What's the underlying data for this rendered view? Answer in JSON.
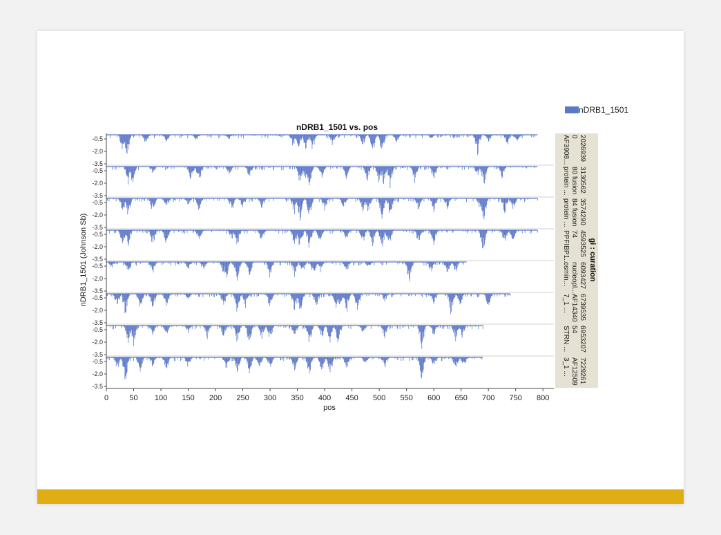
{
  "colors": {
    "bar": "#5b77c8",
    "footer": "#deae14",
    "side_panel": "#e5e2d3",
    "grid": "#d0d0d0"
  },
  "legend": {
    "label": "nDRB1_1501"
  },
  "side_panel": {
    "header": "gi : curation",
    "columns": [
      [
        "2026939",
        "0",
        "AF3908..."
      ],
      [
        "3130562",
        "80 fusion",
        "protein ..."
      ],
      [
        "3574290",
        "84 fusion",
        "protein ..."
      ],
      [
        "4593525",
        "74",
        "PPFIBP1..."
      ],
      [
        "6093427",
        "nucleopl...",
        "osmin..."
      ],
      [
        "6739535",
        "AF14340",
        "7_1 ..."
      ],
      [
        "6953207",
        "54",
        "STRN ..."
      ],
      [
        "7229261",
        "AF12509",
        "3_1 ..."
      ]
    ]
  },
  "chart_data": {
    "type": "bar",
    "title": "nDRB1_1501 vs. pos",
    "xlabel": "pos",
    "ylabel": "nDRB1_1501 (Johnson Sb)",
    "xlim": [
      0,
      820
    ],
    "x_ticks": [
      "0",
      "50",
      "100",
      "150",
      "200",
      "250",
      "300",
      "350",
      "400",
      "450",
      "500",
      "550",
      "600",
      "650",
      "700",
      "750",
      "800"
    ],
    "ylim": [
      -3.5,
      0
    ],
    "y_ticks": [
      "-0.5",
      "-2.0",
      "-3.5"
    ],
    "y_tick_values": [
      -0.5,
      -2.0,
      -3.5
    ],
    "series_name": "nDRB1_1501",
    "panels": [
      {
        "length": 790,
        "deep": [
          [
            30,
            -2.3
          ],
          [
            38,
            -3.1
          ],
          [
            72,
            -1.2
          ],
          [
            110,
            -1.0
          ],
          [
            165,
            -0.8
          ],
          [
            225,
            -0.6
          ],
          [
            342,
            -1.6
          ],
          [
            352,
            -2.1
          ],
          [
            365,
            -1.9
          ],
          [
            378,
            -2.2
          ],
          [
            415,
            -1.5
          ],
          [
            470,
            -1.4
          ],
          [
            488,
            -2.6
          ],
          [
            505,
            -2.2
          ],
          [
            532,
            -1.0
          ],
          [
            595,
            -0.5
          ],
          [
            680,
            -2.8
          ],
          [
            700,
            -1.0
          ],
          [
            735,
            -1.4
          ],
          [
            752,
            -1.2
          ]
        ]
      },
      {
        "length": 790,
        "deep": [
          [
            40,
            -2.3
          ],
          [
            48,
            -2.4
          ],
          [
            85,
            -0.9
          ],
          [
            155,
            -1.9
          ],
          [
            170,
            -2.0
          ],
          [
            225,
            -1.2
          ],
          [
            262,
            -1.4
          ],
          [
            355,
            -2.4
          ],
          [
            365,
            -1.8
          ],
          [
            372,
            -2.6
          ],
          [
            395,
            -1.4
          ],
          [
            440,
            -1.5
          ],
          [
            478,
            -2.0
          ],
          [
            500,
            -2.5
          ],
          [
            508,
            -2.4
          ],
          [
            520,
            -2.8
          ],
          [
            565,
            -2.0
          ],
          [
            600,
            -1.8
          ],
          [
            680,
            -1.2
          ],
          [
            692,
            -2.9
          ],
          [
            725,
            -1.5
          ]
        ]
      },
      {
        "length": 790,
        "deep": [
          [
            30,
            -2.0
          ],
          [
            40,
            -2.3
          ],
          [
            85,
            -1.8
          ],
          [
            110,
            -1.2
          ],
          [
            150,
            -0.9
          ],
          [
            170,
            -1.6
          ],
          [
            230,
            -1.6
          ],
          [
            250,
            -1.2
          ],
          [
            285,
            -1.3
          ],
          [
            345,
            -2.2
          ],
          [
            355,
            -2.8
          ],
          [
            372,
            -2.6
          ],
          [
            400,
            -1.5
          ],
          [
            435,
            -1.3
          ],
          [
            470,
            -1.7
          ],
          [
            480,
            -1.8
          ],
          [
            505,
            -2.5
          ],
          [
            520,
            -2.2
          ],
          [
            572,
            -1.6
          ],
          [
            600,
            -1.7
          ],
          [
            625,
            -1.3
          ],
          [
            685,
            -1.5
          ],
          [
            692,
            -3.1
          ],
          [
            730,
            -1.9
          ],
          [
            745,
            -1.6
          ]
        ]
      },
      {
        "length": 790,
        "deep": [
          [
            30,
            -2.0
          ],
          [
            40,
            -2.2
          ],
          [
            85,
            -2.1
          ],
          [
            110,
            -1.9
          ],
          [
            170,
            -1.4
          ],
          [
            230,
            -1.3
          ],
          [
            240,
            -2.1
          ],
          [
            285,
            -1.6
          ],
          [
            345,
            -2.3
          ],
          [
            355,
            -2.6
          ],
          [
            372,
            -2.5
          ],
          [
            392,
            -1.8
          ],
          [
            440,
            -1.3
          ],
          [
            470,
            -1.8
          ],
          [
            488,
            -2.0
          ],
          [
            505,
            -2.6
          ],
          [
            518,
            -2.2
          ],
          [
            572,
            -1.6
          ],
          [
            600,
            -1.8
          ],
          [
            690,
            -2.9
          ],
          [
            730,
            -1.8
          ],
          [
            745,
            -1.5
          ]
        ]
      },
      {
        "length": 660,
        "deep": [
          [
            10,
            -0.8
          ],
          [
            40,
            -1.5
          ],
          [
            85,
            -1.6
          ],
          [
            150,
            -1.0
          ],
          [
            178,
            -1.2
          ],
          [
            215,
            -1.6
          ],
          [
            220,
            -2.2
          ],
          [
            240,
            -2.6
          ],
          [
            262,
            -2.0
          ],
          [
            300,
            -2.2
          ],
          [
            345,
            -1.8
          ],
          [
            360,
            -1.6
          ],
          [
            380,
            -2.1
          ],
          [
            392,
            -1.3
          ],
          [
            440,
            -1.5
          ],
          [
            480,
            -0.8
          ],
          [
            555,
            -3.1
          ],
          [
            595,
            -1.4
          ],
          [
            625,
            -1.8
          ],
          [
            640,
            -1.4
          ]
        ]
      },
      {
        "length": 740,
        "deep": [
          [
            20,
            -1.8
          ],
          [
            35,
            -3.0
          ],
          [
            62,
            -1.9
          ],
          [
            85,
            -2.0
          ],
          [
            110,
            -1.6
          ],
          [
            150,
            -0.8
          ],
          [
            215,
            -1.7
          ],
          [
            240,
            -2.6
          ],
          [
            255,
            -1.7
          ],
          [
            300,
            -2.0
          ],
          [
            345,
            -2.2
          ],
          [
            355,
            -2.5
          ],
          [
            385,
            -1.8
          ],
          [
            420,
            -2.0
          ],
          [
            428,
            -2.2
          ],
          [
            440,
            -2.6
          ],
          [
            460,
            -2.4
          ],
          [
            510,
            -1.0
          ],
          [
            600,
            -1.4
          ],
          [
            632,
            -3.0
          ],
          [
            648,
            -1.6
          ],
          [
            700,
            -1.8
          ]
        ]
      },
      {
        "length": 690,
        "deep": [
          [
            40,
            -2.1
          ],
          [
            50,
            -2.6
          ],
          [
            85,
            -1.2
          ],
          [
            110,
            -1.3
          ],
          [
            150,
            -1.0
          ],
          [
            185,
            -1.8
          ],
          [
            215,
            -1.6
          ],
          [
            240,
            -2.3
          ],
          [
            262,
            -2.4
          ],
          [
            285,
            -1.7
          ],
          [
            300,
            -1.9
          ],
          [
            345,
            -1.5
          ],
          [
            372,
            -2.4
          ],
          [
            395,
            -1.6
          ],
          [
            410,
            -2.2
          ],
          [
            425,
            -2.5
          ],
          [
            470,
            -1.0
          ],
          [
            510,
            -1.6
          ],
          [
            578,
            -3.0
          ],
          [
            600,
            -1.4
          ],
          [
            640,
            -1.9
          ],
          [
            652,
            -1.5
          ]
        ]
      },
      {
        "length": 690,
        "deep": [
          [
            20,
            -1.6
          ],
          [
            35,
            -3.1
          ],
          [
            62,
            -1.8
          ],
          [
            85,
            -1.2
          ],
          [
            110,
            -1.6
          ],
          [
            150,
            -1.3
          ],
          [
            220,
            -1.5
          ],
          [
            240,
            -2.1
          ],
          [
            262,
            -2.0
          ],
          [
            280,
            -1.4
          ],
          [
            300,
            -1.5
          ],
          [
            345,
            -1.8
          ],
          [
            372,
            -2.3
          ],
          [
            395,
            -2.0
          ],
          [
            410,
            -2.4
          ],
          [
            440,
            -1.6
          ],
          [
            475,
            -1.1
          ],
          [
            510,
            -1.5
          ],
          [
            578,
            -3.0
          ],
          [
            600,
            -1.3
          ],
          [
            640,
            -1.8
          ],
          [
            655,
            -1.4
          ]
        ]
      }
    ]
  }
}
